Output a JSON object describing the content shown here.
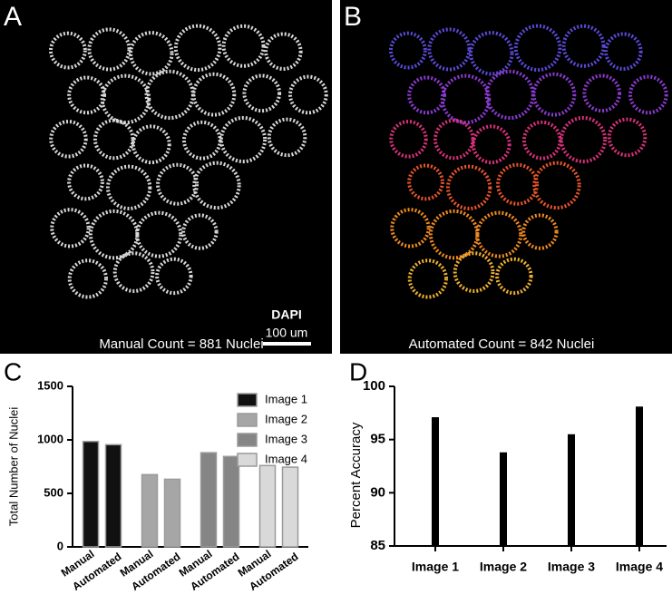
{
  "panels": {
    "a": {
      "label": "A",
      "caption": "Manual Count = 881 Nuclei",
      "stain": "DAPI",
      "scale_bar": "100 um"
    },
    "b": {
      "label": "B",
      "caption": "Automated Count = 842 Nuclei"
    }
  },
  "chart_data": [
    {
      "type": "bar",
      "label": "C",
      "y_label": "Total Number of Nuclei",
      "categories": [
        "Manual",
        "Automated"
      ],
      "series": [
        {
          "name": "Image 1",
          "color": "#111111",
          "values": [
            985,
            955
          ]
        },
        {
          "name": "Image 2",
          "color": "#a6a6a6",
          "values": [
            675,
            632
          ]
        },
        {
          "name": "Image 3",
          "color": "#858585",
          "values": [
            880,
            845
          ]
        },
        {
          "name": "Image 4",
          "color": "#d9d9d9",
          "values": [
            760,
            745
          ]
        }
      ],
      "ylim": [
        0,
        1500
      ],
      "yticks": [
        0,
        500,
        1000,
        1500
      ],
      "legend": "upper right"
    },
    {
      "type": "bar",
      "label": "D",
      "y_label": "Percent Accuracy",
      "categories": [
        "Image 1",
        "Image 2",
        "Image 3",
        "Image 4"
      ],
      "values": [
        97.1,
        93.8,
        95.5,
        98.1
      ],
      "color": "#000000",
      "ylim": [
        85,
        100
      ],
      "yticks": [
        85,
        90,
        95,
        100
      ]
    }
  ]
}
